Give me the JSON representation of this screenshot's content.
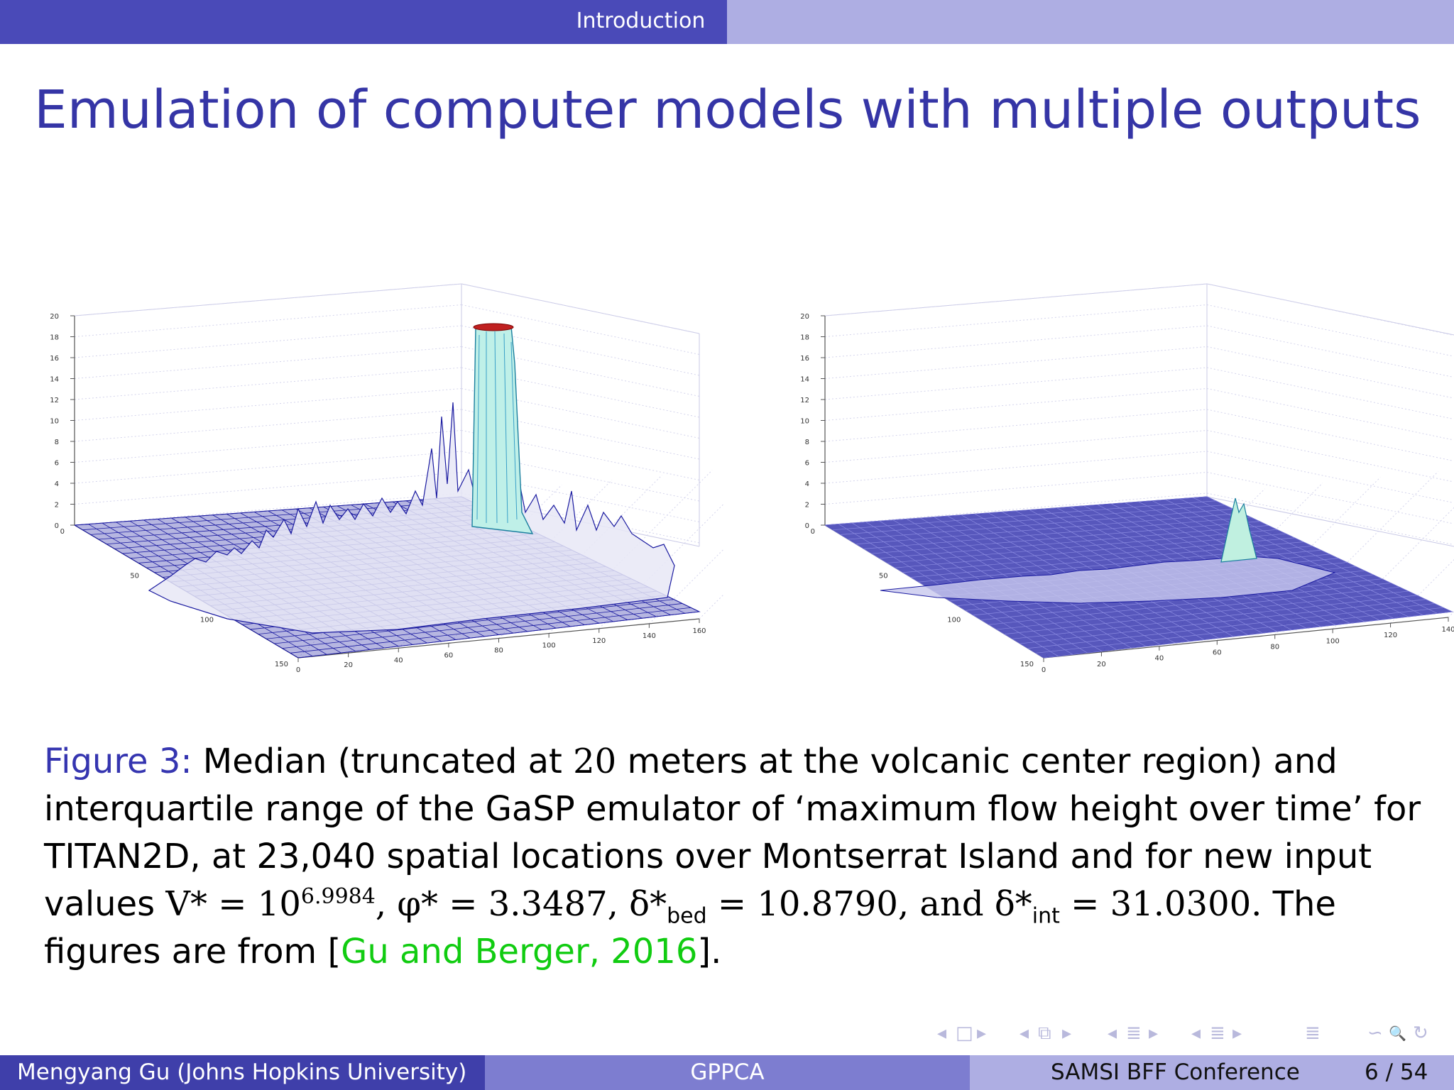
{
  "header": {
    "section": "Introduction"
  },
  "slide": {
    "title": "Emulation of computer models with multiple outputs"
  },
  "figures": [
    {
      "name": "Median",
      "z_ticks": [
        "0",
        "2",
        "4",
        "6",
        "8",
        "10",
        "12",
        "14",
        "16",
        "18",
        "20"
      ],
      "y_ticks": [
        "0",
        "50",
        "100",
        "150"
      ],
      "x_ticks": [
        "0",
        "20",
        "40",
        "60",
        "80",
        "100",
        "120",
        "140",
        "160"
      ]
    },
    {
      "name": "Interquartile range",
      "z_ticks": [
        "0",
        "2",
        "4",
        "6",
        "8",
        "10",
        "12",
        "14",
        "16",
        "18",
        "20"
      ],
      "y_ticks": [
        "0",
        "50",
        "100",
        "150"
      ],
      "x_ticks": [
        "0",
        "20",
        "40",
        "60",
        "80",
        "100",
        "120",
        "140"
      ]
    }
  ],
  "caption": {
    "label": "Figure 3:",
    "text1": " Median (truncated at ",
    "m20": "20",
    "text2": " meters at the volcanic center region) and interquartile range of the GaSP emulator of ‘maximum flow height over time’ for TITAN2D, at 23,040 spatial locations over Montserrat Island and for new input values ",
    "v_lhs": "V* = 10",
    "v_exp": "6.9984",
    "phi": ", φ* = 3.3487, ",
    "delta": "δ*",
    "bed_sub": "bed",
    "bed_val": " = 10.8790, and ",
    "int_sub": "int",
    "int_val": " = 31.0300. ",
    "text3": "The figures are from [",
    "citation": "Gu and Berger, 2016",
    "text4": "]."
  },
  "nav": {
    "frame_prev": "◂",
    "frame_icon": "□",
    "frame_next": "▸",
    "sub_prev": "◂",
    "sub_icon": "⧉",
    "sub_next": "▸",
    "sec_prev": "◂",
    "sec_icon": "≣",
    "sec_next": "▸",
    "subsec_prev": "◂",
    "subsec_icon": "≣",
    "subsec_next": "▸",
    "toc_icon": "≣",
    "search": "∽",
    "zoom": "🔍",
    "undo": "↻"
  },
  "footer": {
    "author": "Mengyang Gu  (Johns Hopkins University)",
    "short_title": "GPPCA",
    "event": "SAMSI BFF Conference",
    "page": "6 / 54"
  },
  "colors": {
    "header_dark": "#4a4ab8",
    "header_light": "#aeaee3",
    "title": "#3535a6",
    "citation": "#11cc11",
    "mesh": "#1a1aa0",
    "peak": "#7fd6c2"
  }
}
